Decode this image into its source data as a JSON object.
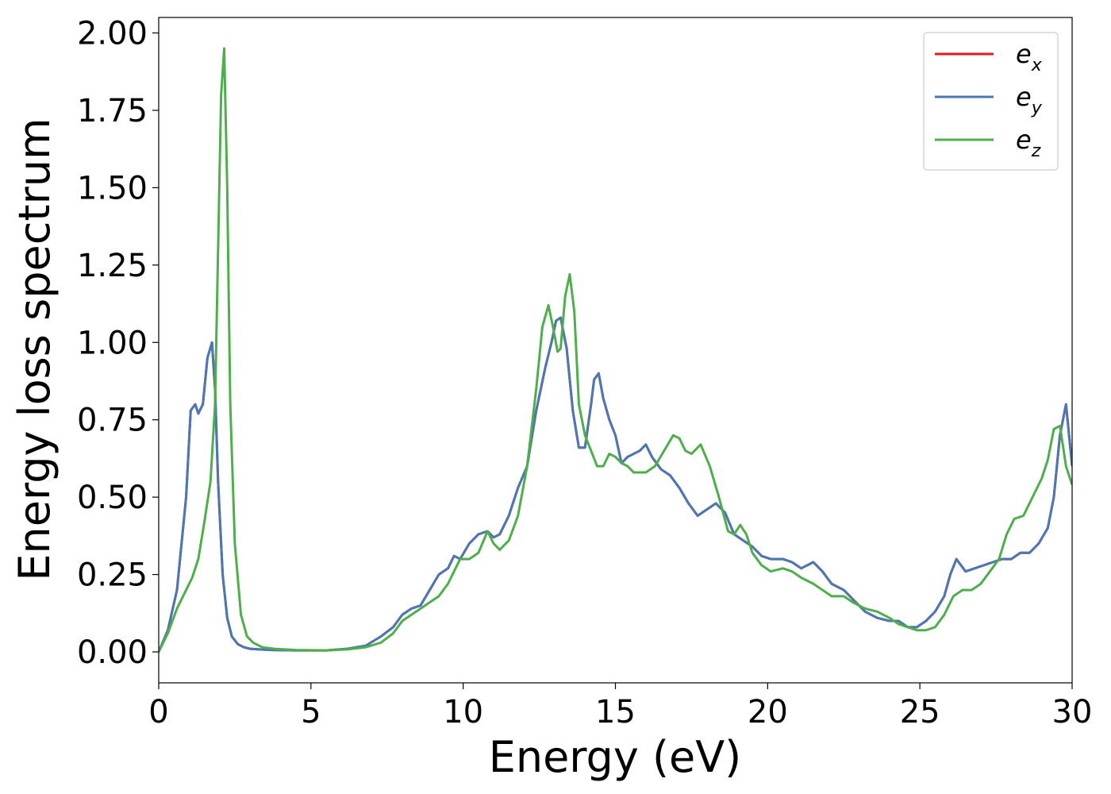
{
  "chart_data": {
    "type": "line",
    "xlabel": "Energy (eV)",
    "ylabel": "Energy loss spectrum",
    "xlim": [
      0,
      30
    ],
    "ylim": [
      -0.1,
      2.05
    ],
    "xticks": [
      0,
      5,
      10,
      15,
      20,
      25,
      30
    ],
    "xtick_labels": [
      "0",
      "5",
      "10",
      "15",
      "20",
      "25",
      "30"
    ],
    "yticks": [
      0,
      0.25,
      0.5,
      0.75,
      1.0,
      1.25,
      1.5,
      1.75,
      2.0
    ],
    "ytick_labels": [
      "0.00",
      "0.25",
      "0.50",
      "0.75",
      "1.00",
      "1.25",
      "1.50",
      "1.75",
      "2.00"
    ],
    "grid": false,
    "legend_position": "top-right",
    "series": [
      {
        "name": "e",
        "subscript": "x",
        "color": "#e41a1c",
        "x": [
          0,
          0.3,
          0.6,
          0.9,
          1.05,
          1.2,
          1.3,
          1.45,
          1.6,
          1.75,
          1.85,
          1.95,
          2.1,
          2.25,
          2.4,
          2.6,
          2.8,
          3.0,
          3.3,
          3.7,
          4.5,
          5.5,
          6.2,
          6.8,
          7.3,
          7.7,
          8.0,
          8.3,
          8.6,
          8.9,
          9.2,
          9.5,
          9.7,
          9.9,
          10.2,
          10.5,
          10.8,
          11.0,
          11.2,
          11.5,
          11.8,
          12.1,
          12.4,
          12.7,
          12.9,
          13.05,
          13.2,
          13.4,
          13.6,
          13.8,
          14.0,
          14.2,
          14.3,
          14.45,
          14.6,
          14.8,
          15.0,
          15.2,
          15.4,
          15.6,
          15.8,
          16.0,
          16.2,
          16.5,
          16.8,
          17.1,
          17.4,
          17.7,
          18.0,
          18.3,
          18.6,
          18.9,
          19.2,
          19.5,
          19.8,
          20.1,
          20.5,
          20.8,
          21.1,
          21.5,
          21.8,
          22.1,
          22.5,
          22.8,
          23.2,
          23.6,
          24.0,
          24.3,
          24.6,
          24.9,
          25.2,
          25.5,
          25.8,
          26.0,
          26.2,
          26.5,
          26.8,
          27.1,
          27.4,
          27.7,
          28.0,
          28.3,
          28.6,
          28.9,
          29.2,
          29.4,
          29.6,
          29.8,
          30.0
        ],
        "y": [
          0.0,
          0.07,
          0.2,
          0.5,
          0.78,
          0.8,
          0.77,
          0.8,
          0.95,
          1.0,
          0.85,
          0.55,
          0.25,
          0.11,
          0.05,
          0.025,
          0.015,
          0.01,
          0.008,
          0.006,
          0.005,
          0.005,
          0.01,
          0.02,
          0.05,
          0.08,
          0.12,
          0.14,
          0.15,
          0.2,
          0.25,
          0.27,
          0.31,
          0.3,
          0.35,
          0.38,
          0.39,
          0.37,
          0.38,
          0.44,
          0.53,
          0.6,
          0.78,
          0.92,
          1.0,
          1.07,
          1.08,
          0.98,
          0.78,
          0.66,
          0.66,
          0.8,
          0.88,
          0.9,
          0.82,
          0.75,
          0.7,
          0.61,
          0.63,
          0.64,
          0.65,
          0.67,
          0.63,
          0.59,
          0.57,
          0.53,
          0.48,
          0.44,
          0.46,
          0.48,
          0.45,
          0.38,
          0.36,
          0.34,
          0.31,
          0.3,
          0.3,
          0.29,
          0.27,
          0.29,
          0.26,
          0.22,
          0.2,
          0.17,
          0.13,
          0.11,
          0.1,
          0.1,
          0.08,
          0.08,
          0.1,
          0.13,
          0.18,
          0.25,
          0.3,
          0.26,
          0.27,
          0.28,
          0.29,
          0.3,
          0.3,
          0.32,
          0.32,
          0.35,
          0.4,
          0.5,
          0.7,
          0.8,
          0.6
        ]
      },
      {
        "name": "e",
        "subscript": "y",
        "color": "#4a78b5",
        "x": [
          0,
          0.3,
          0.6,
          0.9,
          1.05,
          1.2,
          1.3,
          1.45,
          1.6,
          1.75,
          1.85,
          1.95,
          2.1,
          2.25,
          2.4,
          2.6,
          2.8,
          3.0,
          3.3,
          3.7,
          4.5,
          5.5,
          6.2,
          6.8,
          7.3,
          7.7,
          8.0,
          8.3,
          8.6,
          8.9,
          9.2,
          9.5,
          9.7,
          9.9,
          10.2,
          10.5,
          10.8,
          11.0,
          11.2,
          11.5,
          11.8,
          12.1,
          12.4,
          12.7,
          12.9,
          13.05,
          13.2,
          13.4,
          13.6,
          13.8,
          14.0,
          14.2,
          14.3,
          14.45,
          14.6,
          14.8,
          15.0,
          15.2,
          15.4,
          15.6,
          15.8,
          16.0,
          16.2,
          16.5,
          16.8,
          17.1,
          17.4,
          17.7,
          18.0,
          18.3,
          18.6,
          18.9,
          19.2,
          19.5,
          19.8,
          20.1,
          20.5,
          20.8,
          21.1,
          21.5,
          21.8,
          22.1,
          22.5,
          22.8,
          23.2,
          23.6,
          24.0,
          24.3,
          24.6,
          24.9,
          25.2,
          25.5,
          25.8,
          26.0,
          26.2,
          26.5,
          26.8,
          27.1,
          27.4,
          27.7,
          28.0,
          28.3,
          28.6,
          28.9,
          29.2,
          29.4,
          29.6,
          29.8,
          30.0
        ],
        "y": [
          0.0,
          0.07,
          0.2,
          0.5,
          0.78,
          0.8,
          0.77,
          0.8,
          0.95,
          1.0,
          0.85,
          0.55,
          0.25,
          0.11,
          0.05,
          0.025,
          0.015,
          0.01,
          0.008,
          0.006,
          0.005,
          0.005,
          0.01,
          0.02,
          0.05,
          0.08,
          0.12,
          0.14,
          0.15,
          0.2,
          0.25,
          0.27,
          0.31,
          0.3,
          0.35,
          0.38,
          0.39,
          0.37,
          0.38,
          0.44,
          0.53,
          0.6,
          0.78,
          0.92,
          1.0,
          1.07,
          1.08,
          0.98,
          0.78,
          0.66,
          0.66,
          0.8,
          0.88,
          0.9,
          0.82,
          0.75,
          0.7,
          0.61,
          0.63,
          0.64,
          0.65,
          0.67,
          0.63,
          0.59,
          0.57,
          0.53,
          0.48,
          0.44,
          0.46,
          0.48,
          0.45,
          0.38,
          0.36,
          0.34,
          0.31,
          0.3,
          0.3,
          0.29,
          0.27,
          0.29,
          0.26,
          0.22,
          0.2,
          0.17,
          0.13,
          0.11,
          0.1,
          0.1,
          0.08,
          0.08,
          0.1,
          0.13,
          0.18,
          0.25,
          0.3,
          0.26,
          0.27,
          0.28,
          0.29,
          0.3,
          0.3,
          0.32,
          0.32,
          0.35,
          0.4,
          0.5,
          0.7,
          0.8,
          0.6
        ]
      },
      {
        "name": "e",
        "subscript": "z",
        "color": "#4daf4a",
        "x": [
          0,
          0.3,
          0.6,
          0.9,
          1.1,
          1.3,
          1.5,
          1.7,
          1.85,
          1.95,
          2.05,
          2.15,
          2.25,
          2.35,
          2.5,
          2.7,
          2.9,
          3.1,
          3.4,
          3.8,
          4.5,
          5.5,
          6.2,
          6.8,
          7.3,
          7.7,
          8.0,
          8.3,
          8.6,
          8.9,
          9.2,
          9.5,
          9.7,
          9.9,
          10.2,
          10.5,
          10.8,
          11.0,
          11.2,
          11.5,
          11.8,
          12.1,
          12.4,
          12.6,
          12.8,
          12.95,
          13.1,
          13.2,
          13.35,
          13.5,
          13.65,
          13.8,
          14.0,
          14.2,
          14.4,
          14.6,
          14.8,
          15.0,
          15.2,
          15.4,
          15.6,
          15.8,
          16.0,
          16.3,
          16.6,
          16.9,
          17.1,
          17.3,
          17.5,
          17.8,
          18.1,
          18.4,
          18.7,
          18.9,
          19.1,
          19.3,
          19.5,
          19.8,
          20.1,
          20.5,
          20.8,
          21.1,
          21.5,
          21.8,
          22.1,
          22.5,
          22.8,
          23.2,
          23.6,
          24.0,
          24.3,
          24.6,
          24.9,
          25.2,
          25.5,
          25.8,
          26.1,
          26.4,
          26.7,
          27.0,
          27.3,
          27.6,
          27.85,
          28.1,
          28.4,
          28.7,
          29.0,
          29.2,
          29.4,
          29.6,
          29.8,
          30.0
        ],
        "y": [
          0.0,
          0.06,
          0.14,
          0.2,
          0.24,
          0.3,
          0.42,
          0.55,
          0.8,
          1.3,
          1.8,
          1.95,
          1.5,
          0.8,
          0.35,
          0.12,
          0.05,
          0.03,
          0.015,
          0.01,
          0.006,
          0.005,
          0.008,
          0.015,
          0.03,
          0.06,
          0.1,
          0.12,
          0.14,
          0.16,
          0.18,
          0.22,
          0.26,
          0.3,
          0.3,
          0.32,
          0.39,
          0.35,
          0.33,
          0.36,
          0.44,
          0.6,
          0.85,
          1.05,
          1.12,
          1.05,
          0.97,
          0.98,
          1.15,
          1.22,
          1.1,
          0.8,
          0.7,
          0.65,
          0.6,
          0.6,
          0.64,
          0.63,
          0.61,
          0.6,
          0.58,
          0.58,
          0.58,
          0.6,
          0.65,
          0.7,
          0.69,
          0.65,
          0.64,
          0.67,
          0.6,
          0.5,
          0.39,
          0.38,
          0.41,
          0.38,
          0.32,
          0.28,
          0.26,
          0.27,
          0.26,
          0.24,
          0.22,
          0.2,
          0.18,
          0.18,
          0.16,
          0.14,
          0.13,
          0.11,
          0.09,
          0.08,
          0.07,
          0.07,
          0.08,
          0.12,
          0.18,
          0.2,
          0.2,
          0.22,
          0.26,
          0.3,
          0.38,
          0.43,
          0.44,
          0.5,
          0.56,
          0.62,
          0.72,
          0.73,
          0.6,
          0.54
        ]
      }
    ]
  }
}
